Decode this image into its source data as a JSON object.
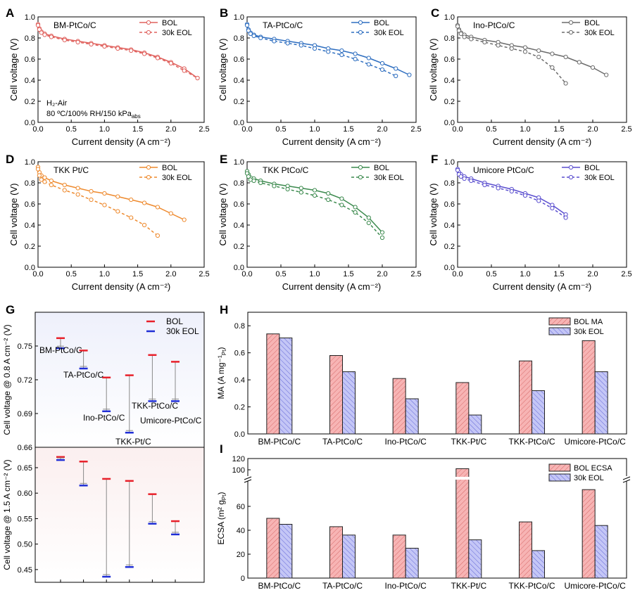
{
  "panel_letters": {
    "A": "A",
    "B": "B",
    "C": "C",
    "D": "D",
    "E": "E",
    "F": "F",
    "G": "G",
    "H": "H",
    "I": "I"
  },
  "chart_data": [
    {
      "panel": "A",
      "type": "line",
      "title": "BM-PtCo/C",
      "xlabel": "Current density (A cm⁻²)",
      "ylabel": "Cell voltage (V)",
      "xlim": [
        0,
        2.5
      ],
      "ylim": [
        0,
        1.0
      ],
      "xticks": [
        "0.0",
        "0.5",
        "1.0",
        "1.5",
        "2.0",
        "2.5"
      ],
      "yticks": [
        "0.0",
        "0.2",
        "0.4",
        "0.6",
        "0.8",
        "1.0"
      ],
      "annotation": [
        "H₂-Air",
        "80 ºC/100% RH/150 kPa",
        "abs"
      ],
      "color": "#e0625e",
      "legend": "top-right",
      "series": [
        {
          "name": "BOL",
          "style": "solid",
          "x": [
            0,
            0.02,
            0.05,
            0.1,
            0.2,
            0.4,
            0.6,
            0.8,
            1.0,
            1.2,
            1.4,
            1.6,
            1.8,
            2.0,
            2.2,
            2.4
          ],
          "y": [
            0.93,
            0.89,
            0.86,
            0.84,
            0.82,
            0.79,
            0.77,
            0.75,
            0.73,
            0.71,
            0.69,
            0.66,
            0.62,
            0.57,
            0.51,
            0.42
          ]
        },
        {
          "name": "30k EOL",
          "style": "dashed",
          "x": [
            0,
            0.02,
            0.05,
            0.1,
            0.2,
            0.4,
            0.6,
            0.8,
            1.0,
            1.2,
            1.4,
            1.6,
            1.8,
            2.0,
            2.2,
            2.4
          ],
          "y": [
            0.92,
            0.88,
            0.85,
            0.83,
            0.81,
            0.78,
            0.76,
            0.74,
            0.72,
            0.7,
            0.68,
            0.65,
            0.61,
            0.56,
            0.49,
            0.42
          ]
        }
      ]
    },
    {
      "panel": "B",
      "type": "line",
      "title": "TA-PtCo/C",
      "xlabel": "Current density (A cm⁻²)",
      "ylabel": "Cell voltage (V)",
      "xlim": [
        0,
        2.5
      ],
      "ylim": [
        0,
        1.0
      ],
      "xticks": [
        "0.0",
        "0.5",
        "1.0",
        "1.5",
        "2.0",
        "2.5"
      ],
      "yticks": [
        "0.0",
        "0.2",
        "0.4",
        "0.6",
        "0.8",
        "1.0"
      ],
      "color": "#2e6ec0",
      "legend": "top-right",
      "series": [
        {
          "name": "BOL",
          "style": "solid",
          "x": [
            0,
            0.02,
            0.05,
            0.1,
            0.2,
            0.4,
            0.6,
            0.8,
            1.0,
            1.2,
            1.4,
            1.6,
            1.8,
            2.0,
            2.2,
            2.4
          ],
          "y": [
            0.93,
            0.88,
            0.85,
            0.83,
            0.81,
            0.79,
            0.77,
            0.75,
            0.73,
            0.7,
            0.68,
            0.65,
            0.61,
            0.56,
            0.51,
            0.45
          ]
        },
        {
          "name": "30k EOL",
          "style": "dashed",
          "x": [
            0,
            0.02,
            0.05,
            0.1,
            0.2,
            0.4,
            0.6,
            0.8,
            1.0,
            1.2,
            1.4,
            1.6,
            1.8,
            2.0,
            2.2
          ],
          "y": [
            0.92,
            0.87,
            0.84,
            0.82,
            0.8,
            0.77,
            0.75,
            0.73,
            0.7,
            0.67,
            0.64,
            0.6,
            0.55,
            0.5,
            0.44
          ]
        }
      ]
    },
    {
      "panel": "C",
      "type": "line",
      "title": "Ino-PtCo/C",
      "xlabel": "Current density (A cm⁻²)",
      "ylabel": "Cell voltage (V)",
      "xlim": [
        0,
        2.5
      ],
      "ylim": [
        0,
        1.0
      ],
      "xticks": [
        "0.0",
        "0.5",
        "1.0",
        "1.5",
        "2.0",
        "2.5"
      ],
      "yticks": [
        "0.0",
        "0.2",
        "0.4",
        "0.6",
        "0.8",
        "1.0"
      ],
      "color": "#6b6b6b",
      "legend": "top-right",
      "series": [
        {
          "name": "BOL",
          "style": "solid",
          "x": [
            0,
            0.02,
            0.05,
            0.1,
            0.2,
            0.4,
            0.6,
            0.8,
            1.0,
            1.2,
            1.4,
            1.6,
            1.8,
            2.0,
            2.2
          ],
          "y": [
            0.92,
            0.88,
            0.85,
            0.83,
            0.81,
            0.78,
            0.76,
            0.73,
            0.71,
            0.68,
            0.65,
            0.62,
            0.57,
            0.52,
            0.45
          ]
        },
        {
          "name": "30k EOL",
          "style": "dashed",
          "x": [
            0,
            0.02,
            0.05,
            0.1,
            0.2,
            0.4,
            0.6,
            0.8,
            1.0,
            1.2,
            1.4,
            1.6
          ],
          "y": [
            0.91,
            0.87,
            0.84,
            0.81,
            0.79,
            0.76,
            0.73,
            0.7,
            0.67,
            0.62,
            0.52,
            0.37
          ]
        }
      ]
    },
    {
      "panel": "D",
      "type": "line",
      "title": "TKK Pt/C",
      "xlabel": "Current density (A cm⁻²)",
      "ylabel": "Cell voltage (V)",
      "xlim": [
        0,
        2.5
      ],
      "ylim": [
        0,
        1.0
      ],
      "xticks": [
        "0.0",
        "0.5",
        "1.0",
        "1.5",
        "2.0",
        "2.5"
      ],
      "yticks": [
        "0.0",
        "0.2",
        "0.4",
        "0.6",
        "0.8",
        "1.0"
      ],
      "color": "#ee8a2e",
      "legend": "top-right",
      "series": [
        {
          "name": "BOL",
          "style": "solid",
          "x": [
            0,
            0.02,
            0.05,
            0.1,
            0.2,
            0.4,
            0.6,
            0.8,
            1.0,
            1.2,
            1.4,
            1.6,
            1.8,
            2.0,
            2.2
          ],
          "y": [
            0.95,
            0.9,
            0.87,
            0.85,
            0.82,
            0.78,
            0.75,
            0.72,
            0.7,
            0.67,
            0.64,
            0.61,
            0.57,
            0.51,
            0.45
          ]
        },
        {
          "name": "30k EOL",
          "style": "dashed",
          "x": [
            0,
            0.02,
            0.05,
            0.1,
            0.2,
            0.4,
            0.6,
            0.8,
            1.0,
            1.2,
            1.4,
            1.6,
            1.8
          ],
          "y": [
            0.93,
            0.87,
            0.83,
            0.81,
            0.78,
            0.73,
            0.69,
            0.64,
            0.59,
            0.53,
            0.47,
            0.4,
            0.3
          ]
        }
      ]
    },
    {
      "panel": "E",
      "type": "line",
      "title": "TKK PtCo/C",
      "xlabel": "Current density (A cm⁻²)",
      "ylabel": "Cell voltage (V)",
      "xlim": [
        0,
        2.5
      ],
      "ylim": [
        0,
        1.0
      ],
      "xticks": [
        "0.0",
        "0.5",
        "1.0",
        "1.5",
        "2.0",
        "2.5"
      ],
      "yticks": [
        "0.0",
        "0.2",
        "0.4",
        "0.6",
        "0.8",
        "1.0"
      ],
      "color": "#3c8a4e",
      "legend": "top-right",
      "series": [
        {
          "name": "BOL",
          "style": "solid",
          "x": [
            0,
            0.02,
            0.05,
            0.1,
            0.2,
            0.4,
            0.6,
            0.8,
            1.0,
            1.2,
            1.4,
            1.6,
            1.8,
            2.0
          ],
          "y": [
            0.91,
            0.88,
            0.85,
            0.84,
            0.82,
            0.79,
            0.77,
            0.75,
            0.73,
            0.7,
            0.65,
            0.57,
            0.47,
            0.33
          ]
        },
        {
          "name": "30k EOL",
          "style": "dashed",
          "x": [
            0,
            0.02,
            0.05,
            0.1,
            0.2,
            0.4,
            0.6,
            0.8,
            1.0,
            1.2,
            1.4,
            1.6,
            1.8,
            2.0
          ],
          "y": [
            0.89,
            0.86,
            0.83,
            0.82,
            0.8,
            0.77,
            0.74,
            0.71,
            0.68,
            0.64,
            0.59,
            0.52,
            0.42,
            0.28
          ]
        }
      ]
    },
    {
      "panel": "F",
      "type": "line",
      "title": "Umicore  PtCo/C",
      "xlabel": "Current density (A cm⁻²)",
      "ylabel": "Cell voltage (V)",
      "xlim": [
        0,
        2.5
      ],
      "ylim": [
        0,
        1.0
      ],
      "xticks": [
        "0.0",
        "0.5",
        "1.0",
        "1.5",
        "2.0",
        "2.5"
      ],
      "yticks": [
        "0.0",
        "0.2",
        "0.4",
        "0.6",
        "0.8",
        "1.0"
      ],
      "color": "#5b4fcf",
      "legend": "top-right",
      "series": [
        {
          "name": "BOL",
          "style": "solid",
          "x": [
            0,
            0.02,
            0.05,
            0.1,
            0.2,
            0.4,
            0.6,
            0.8,
            1.0,
            1.2,
            1.4,
            1.6
          ],
          "y": [
            0.93,
            0.9,
            0.88,
            0.86,
            0.84,
            0.8,
            0.77,
            0.74,
            0.7,
            0.66,
            0.59,
            0.5
          ]
        },
        {
          "name": "30k EOL",
          "style": "dashed",
          "x": [
            0,
            0.02,
            0.05,
            0.1,
            0.2,
            0.4,
            0.6,
            0.8,
            1.0,
            1.2,
            1.4,
            1.6
          ],
          "y": [
            0.92,
            0.88,
            0.86,
            0.84,
            0.82,
            0.78,
            0.75,
            0.72,
            0.68,
            0.63,
            0.56,
            0.47
          ]
        }
      ]
    },
    {
      "panel": "G",
      "type": "scatter",
      "legend": "top-right",
      "series_names": [
        "BOL",
        "30k EOL"
      ],
      "colors": {
        "BOL": "#e8202a",
        "EOL": "#1f2ed6",
        "connector": "#8a8a8a"
      },
      "categories": [
        "BM-PtCo/C",
        "TA-PtCo/C",
        "Ino-PtCo/C",
        "TKK-Pt/C",
        "TKK-PtCo/C",
        "Umicore-PtCo/C"
      ],
      "top": {
        "ylabel": "Cell voltage @ 0.8 A cm⁻² (V)",
        "ylim": [
          0.66,
          0.78
        ],
        "yticks": [
          "0.66",
          "0.69",
          "0.72",
          "0.75"
        ],
        "BOL": [
          0.757,
          0.746,
          0.722,
          0.724,
          0.742,
          0.736
        ],
        "EOL": [
          0.748,
          0.73,
          0.692,
          0.673,
          0.701,
          0.701
        ]
      },
      "bottom": {
        "ylabel": "Cell voltage @ 1.5 A cm⁻² (V)",
        "ylim": [
          0.425,
          0.69
        ],
        "yticks": [
          "0.45",
          "0.50",
          "0.55",
          "0.60",
          "0.65"
        ],
        "BOL": [
          0.671,
          0.662,
          0.628,
          0.624,
          0.598,
          0.545
        ],
        "EOL": [
          0.665,
          0.615,
          0.436,
          0.455,
          0.54,
          0.519
        ]
      }
    },
    {
      "panel": "H",
      "type": "bar",
      "ylabel": "MA (A mg⁻¹",
      "ylabel_sub": "Pt",
      "ylabel_end": ")",
      "ylim": [
        0,
        0.9
      ],
      "yticks": [
        "0.0",
        "0.2",
        "0.4",
        "0.6",
        "0.8"
      ],
      "categories": [
        "BM-PtCo/C",
        "TA-PtCo/C",
        "Ino-PtCo/C",
        "TKK-Pt/C",
        "TKK-PtCo/C",
        "Umicore-PtCo/C"
      ],
      "legend": "top-right",
      "series": [
        {
          "name": "BOL MA",
          "color": "#f7b4b4",
          "values": [
            0.74,
            0.58,
            0.41,
            0.38,
            0.54,
            0.69
          ]
        },
        {
          "name": "30k EOL",
          "color": "#b6b8f3",
          "values": [
            0.71,
            0.46,
            0.26,
            0.14,
            0.32,
            0.46
          ]
        }
      ]
    },
    {
      "panel": "I",
      "type": "bar",
      "ylabel": "ECSA (m² g",
      "ylabel_sub": "Pt",
      "ylabel_end": ")",
      "ylim": [
        0,
        120
      ],
      "axis_break": [
        80,
        95
      ],
      "yticks": [
        "0",
        "20",
        "40",
        "60",
        "100",
        "120"
      ],
      "categories": [
        "BM-PtCo/C",
        "TA-PtCo/C",
        "Ino-PtCo/C",
        "TKK-Pt/C",
        "TKK-PtCo/C",
        "Umicore-PtCo/C"
      ],
      "legend": "top-right",
      "series": [
        {
          "name": "BOL ECSA",
          "color": "#f7b4b4",
          "values": [
            50,
            43,
            36,
            102,
            47,
            74
          ]
        },
        {
          "name": "30k EOL",
          "color": "#b6b8f3",
          "values": [
            45,
            36,
            25,
            32,
            23,
            44
          ]
        }
      ]
    }
  ]
}
